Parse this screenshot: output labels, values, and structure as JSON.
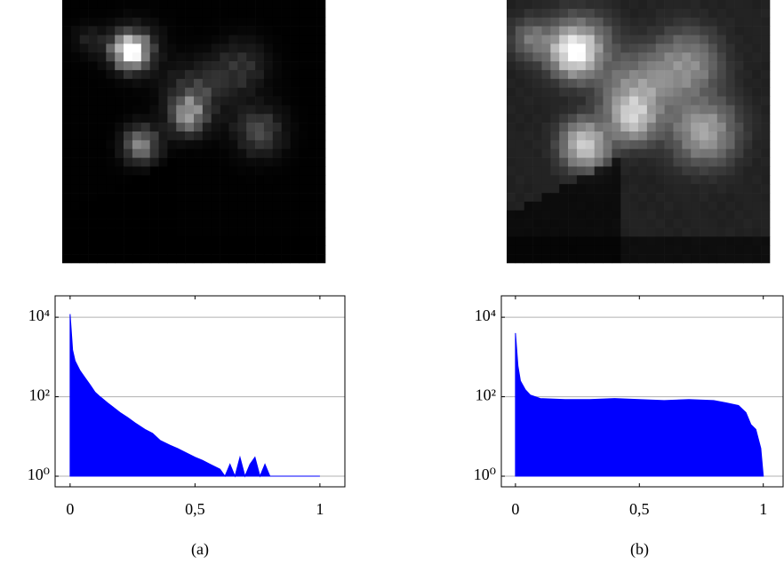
{
  "chart_data": [
    {
      "type": "area",
      "caption": "(a)",
      "log_y": true,
      "grid": true,
      "color": "#0000ff",
      "xlim": [
        -0.06,
        1.1
      ],
      "ylim": [
        0.54,
        34600
      ],
      "xticks": [
        0,
        {
          "value": 0.5,
          "label": "0,5"
        },
        1
      ],
      "yticks": [
        {
          "value": 1,
          "label": "10⁰"
        },
        {
          "value": 100,
          "label": "10²"
        },
        {
          "value": 10000,
          "label": "10⁴"
        }
      ],
      "x": [
        0,
        0.01,
        0.02,
        0.04,
        0.06,
        0.08,
        0.1,
        0.12,
        0.15,
        0.18,
        0.2,
        0.23,
        0.26,
        0.3,
        0.33,
        0.36,
        0.4,
        0.43,
        0.46,
        0.5,
        0.53,
        0.56,
        0.6,
        0.62,
        0.64,
        0.66,
        0.68,
        0.7,
        0.72,
        0.74,
        0.76,
        0.78,
        0.8,
        0.85,
        0.9,
        0.95,
        1
      ],
      "values": [
        12000,
        1500,
        800,
        450,
        300,
        200,
        130,
        100,
        70,
        50,
        40,
        30,
        22,
        15,
        12,
        8,
        6,
        5,
        4,
        3,
        2.5,
        2,
        1.5,
        1,
        2,
        1,
        3,
        1,
        2,
        3,
        1,
        2,
        1,
        1,
        1,
        1,
        1
      ]
    },
    {
      "type": "area",
      "caption": "(b)",
      "log_y": true,
      "grid": true,
      "color": "#0000ff",
      "xlim": [
        -0.057,
        1.08
      ],
      "ylim": [
        0.54,
        34600
      ],
      "xticks": [
        0,
        {
          "value": 0.5,
          "label": "0,5"
        },
        1
      ],
      "yticks": [
        {
          "value": 1,
          "label": "10⁰"
        },
        {
          "value": 100,
          "label": "10²"
        },
        {
          "value": 10000,
          "label": "10⁴"
        }
      ],
      "x": [
        0,
        0.01,
        0.02,
        0.04,
        0.06,
        0.08,
        0.1,
        0.2,
        0.3,
        0.4,
        0.5,
        0.6,
        0.7,
        0.8,
        0.85,
        0.9,
        0.93,
        0.95,
        0.97,
        0.99,
        1
      ],
      "values": [
        4000,
        600,
        250,
        150,
        110,
        100,
        90,
        85,
        85,
        90,
        85,
        80,
        85,
        80,
        70,
        60,
        40,
        20,
        15,
        5,
        1
      ]
    }
  ]
}
